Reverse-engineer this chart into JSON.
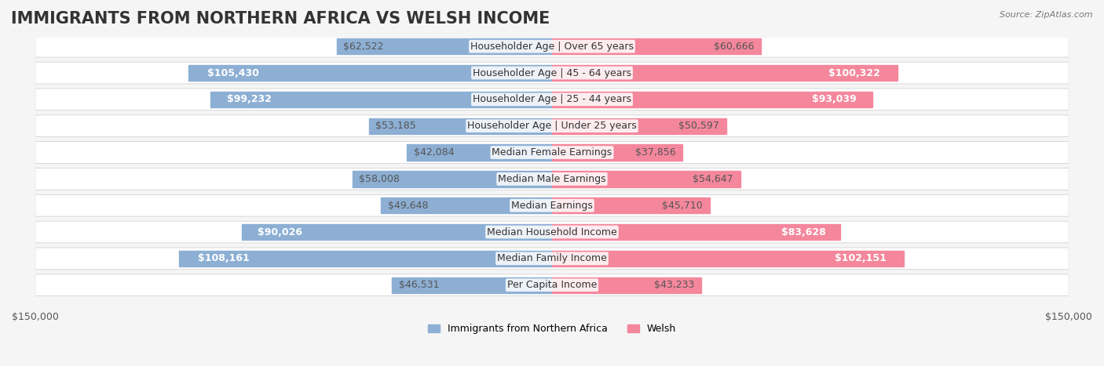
{
  "title": "IMMIGRANTS FROM NORTHERN AFRICA VS WELSH INCOME",
  "source": "Source: ZipAtlas.com",
  "categories": [
    "Per Capita Income",
    "Median Family Income",
    "Median Household Income",
    "Median Earnings",
    "Median Male Earnings",
    "Median Female Earnings",
    "Householder Age | Under 25 years",
    "Householder Age | 25 - 44 years",
    "Householder Age | 45 - 64 years",
    "Householder Age | Over 65 years"
  ],
  "left_values": [
    46531,
    108161,
    90026,
    49648,
    58008,
    42084,
    53185,
    99232,
    105430,
    62522
  ],
  "right_values": [
    43233,
    102151,
    83628,
    45710,
    54647,
    37856,
    50597,
    93039,
    100322,
    60666
  ],
  "left_labels": [
    "$46,531",
    "$108,161",
    "$90,026",
    "$49,648",
    "$58,008",
    "$42,084",
    "$53,185",
    "$99,232",
    "$105,430",
    "$62,522"
  ],
  "right_labels": [
    "$43,233",
    "$102,151",
    "$83,628",
    "$45,710",
    "$54,647",
    "$37,856",
    "$50,597",
    "$93,039",
    "$100,322",
    "$60,666"
  ],
  "left_color": "#8dafd4",
  "right_color": "#f4879c",
  "left_label_color_inside": "#ffffff",
  "left_label_color_outside": "#555555",
  "right_label_color_inside": "#ffffff",
  "right_label_color_outside": "#555555",
  "inside_threshold": 70000,
  "max_value": 150000,
  "legend_left": "Immigrants from Northern Africa",
  "legend_right": "Welsh",
  "background_color": "#f5f5f5",
  "row_bg_color": "#ffffff",
  "title_fontsize": 15,
  "label_fontsize": 9,
  "category_fontsize": 9,
  "axis_fontsize": 9
}
